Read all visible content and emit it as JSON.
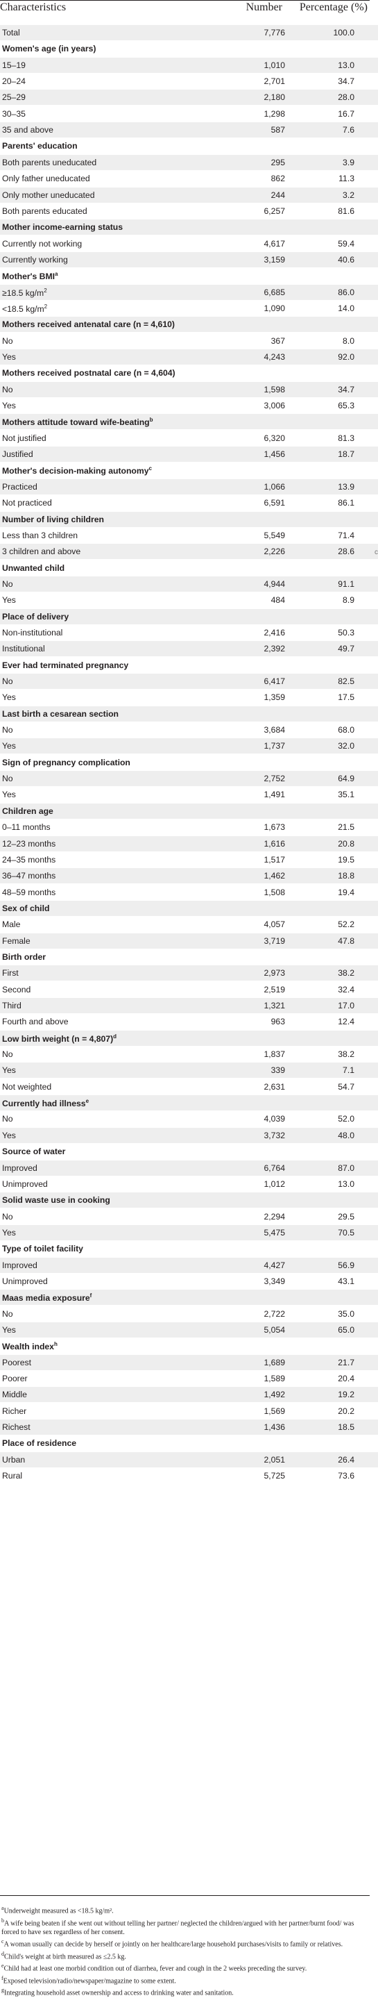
{
  "header": {
    "characteristics": "Characteristics",
    "number": "Number",
    "percentage": "Percentage (%)"
  },
  "rows": [
    {
      "type": "data",
      "label": "Total",
      "number": "7,776",
      "percent": "100.0"
    },
    {
      "type": "section",
      "label": "Women's age (in years)"
    },
    {
      "type": "data",
      "label": "15–19",
      "number": "1,010",
      "percent": "13.0"
    },
    {
      "type": "data",
      "label": "20–24",
      "number": "2,701",
      "percent": "34.7"
    },
    {
      "type": "data",
      "label": "25–29",
      "number": "2,180",
      "percent": "28.0"
    },
    {
      "type": "data",
      "label": "30–35",
      "number": "1,298",
      "percent": "16.7"
    },
    {
      "type": "data",
      "label": "35 and above",
      "number": "587",
      "percent": "7.6"
    },
    {
      "type": "section",
      "label": "Parents' education"
    },
    {
      "type": "data",
      "label": "Both parents uneducated",
      "number": "295",
      "percent": "3.9"
    },
    {
      "type": "data",
      "label": "Only father uneducated",
      "number": "862",
      "percent": "11.3"
    },
    {
      "type": "data",
      "label": "Only mother uneducated",
      "number": "244",
      "percent": "3.2"
    },
    {
      "type": "data",
      "label": "Both parents educated",
      "number": "6,257",
      "percent": "81.6"
    },
    {
      "type": "section",
      "label": "Mother income-earning status"
    },
    {
      "type": "data",
      "label": "Currently not working",
      "number": "4,617",
      "percent": "59.4"
    },
    {
      "type": "data",
      "label": "Currently working",
      "number": "3,159",
      "percent": "40.6"
    },
    {
      "type": "section",
      "label": "Mother's BMI",
      "sup": "a"
    },
    {
      "type": "data",
      "label": "≥18.5 kg/m",
      "sup": "2",
      "number": "6,685",
      "percent": "86.0"
    },
    {
      "type": "data",
      "label": "<18.5 kg/m",
      "sup": "2",
      "number": "1,090",
      "percent": "14.0"
    },
    {
      "type": "section",
      "label": "Mothers received antenatal care (n = 4,610)"
    },
    {
      "type": "data",
      "label": "No",
      "number": "367",
      "percent": "8.0"
    },
    {
      "type": "data",
      "label": "Yes",
      "number": "4,243",
      "percent": "92.0"
    },
    {
      "type": "section",
      "label": "Mothers received postnatal care (n = 4,604)"
    },
    {
      "type": "data",
      "label": "No",
      "number": "1,598",
      "percent": "34.7"
    },
    {
      "type": "data",
      "label": "Yes",
      "number": "3,006",
      "percent": "65.3"
    },
    {
      "type": "section",
      "label": "Mothers attitude toward wife-beating",
      "sup": "b"
    },
    {
      "type": "data",
      "label": "Not justified",
      "number": "6,320",
      "percent": "81.3"
    },
    {
      "type": "data",
      "label": "Justified",
      "number": "1,456",
      "percent": "18.7"
    },
    {
      "type": "section",
      "label": "Mother's decision-making autonomy",
      "sup": "c"
    },
    {
      "type": "data",
      "label": "Practiced",
      "number": "1,066",
      "percent": "13.9"
    },
    {
      "type": "data",
      "label": "Not practiced",
      "number": "6,591",
      "percent": "86.1"
    },
    {
      "type": "section",
      "label": "Number of living children"
    },
    {
      "type": "data",
      "label": "Less than 3 children",
      "number": "5,549",
      "percent": "71.4"
    },
    {
      "type": "data",
      "label": "3 children and above",
      "number": "2,226",
      "percent": "28.6"
    },
    {
      "type": "section",
      "label": "Unwanted child"
    },
    {
      "type": "data",
      "label": "No",
      "number": "4,944",
      "percent": "91.1"
    },
    {
      "type": "data",
      "label": "Yes",
      "number": "484",
      "percent": "8.9"
    },
    {
      "type": "section",
      "label": "Place of delivery"
    },
    {
      "type": "data",
      "label": "Non-institutional",
      "number": "2,416",
      "percent": "50.3"
    },
    {
      "type": "data",
      "label": "Institutional",
      "number": "2,392",
      "percent": "49.7"
    },
    {
      "type": "section",
      "label": "Ever had terminated pregnancy"
    },
    {
      "type": "data",
      "label": "No",
      "number": "6,417",
      "percent": "82.5"
    },
    {
      "type": "data",
      "label": "Yes",
      "number": "1,359",
      "percent": "17.5"
    },
    {
      "type": "section",
      "label": "Last birth a cesarean section"
    },
    {
      "type": "data",
      "label": "No",
      "number": "3,684",
      "percent": "68.0"
    },
    {
      "type": "data",
      "label": "Yes",
      "number": "1,737",
      "percent": "32.0"
    },
    {
      "type": "section",
      "label": "Sign of pregnancy complication"
    },
    {
      "type": "data",
      "label": "No",
      "number": "2,752",
      "percent": "64.9"
    },
    {
      "type": "data",
      "label": "Yes",
      "number": "1,491",
      "percent": "35.1"
    },
    {
      "type": "section",
      "label": "Children age"
    },
    {
      "type": "data",
      "label": "0–11 months",
      "number": "1,673",
      "percent": "21.5"
    },
    {
      "type": "data",
      "label": "12–23 months",
      "number": "1,616",
      "percent": "20.8"
    },
    {
      "type": "data",
      "label": "24–35 months",
      "number": "1,517",
      "percent": "19.5"
    },
    {
      "type": "data",
      "label": "36–47 months",
      "number": "1,462",
      "percent": "18.8"
    },
    {
      "type": "data",
      "label": "48–59 months",
      "number": "1,508",
      "percent": "19.4"
    },
    {
      "type": "section",
      "label": "Sex of child"
    },
    {
      "type": "data",
      "label": "Male",
      "number": "4,057",
      "percent": "52.2"
    },
    {
      "type": "data",
      "label": "Female",
      "number": "3,719",
      "percent": "47.8"
    },
    {
      "type": "section",
      "label": "Birth order"
    },
    {
      "type": "data",
      "label": "First",
      "number": "2,973",
      "percent": "38.2"
    },
    {
      "type": "data",
      "label": "Second",
      "number": "2,519",
      "percent": "32.4"
    },
    {
      "type": "data",
      "label": "Third",
      "number": "1,321",
      "percent": "17.0"
    },
    {
      "type": "data",
      "label": "Fourth and above",
      "number": "963",
      "percent": "12.4"
    },
    {
      "type": "section",
      "label": "Low birth weight (n = 4,807)",
      "sup": "d"
    },
    {
      "type": "data",
      "label": "No",
      "number": "1,837",
      "percent": "38.2"
    },
    {
      "type": "data",
      "label": "Yes",
      "number": "339",
      "percent": "7.1"
    },
    {
      "type": "data",
      "label": "Not weighted",
      "number": "2,631",
      "percent": "54.7"
    },
    {
      "type": "section",
      "label": "Currently had illness",
      "sup": "e"
    },
    {
      "type": "data",
      "label": "No",
      "number": "4,039",
      "percent": "52.0"
    },
    {
      "type": "data",
      "label": "Yes",
      "number": "3,732",
      "percent": "48.0"
    },
    {
      "type": "section",
      "label": "Source of water"
    },
    {
      "type": "data",
      "label": "Improved",
      "number": "6,764",
      "percent": "87.0"
    },
    {
      "type": "data",
      "label": "Unimproved",
      "number": "1,012",
      "percent": "13.0"
    },
    {
      "type": "section",
      "label": "Solid waste use in cooking"
    },
    {
      "type": "data",
      "label": "No",
      "number": "2,294",
      "percent": "29.5"
    },
    {
      "type": "data",
      "label": "Yes",
      "number": "5,475",
      "percent": "70.5"
    },
    {
      "type": "section",
      "label": "Type of toilet facility"
    },
    {
      "type": "data",
      "label": "Improved",
      "number": "4,427",
      "percent": "56.9"
    },
    {
      "type": "data",
      "label": "Unimproved",
      "number": "3,349",
      "percent": "43.1"
    },
    {
      "type": "section",
      "label": "Maas media exposure",
      "sup": "f"
    },
    {
      "type": "data",
      "label": "No",
      "number": "2,722",
      "percent": "35.0"
    },
    {
      "type": "data",
      "label": "Yes",
      "number": "5,054",
      "percent": "65.0"
    },
    {
      "type": "section",
      "label": "Wealth index",
      "sup": "h"
    },
    {
      "type": "data",
      "label": "Poorest",
      "number": "1,689",
      "percent": "21.7"
    },
    {
      "type": "data",
      "label": "Poorer",
      "number": "1,589",
      "percent": "20.4"
    },
    {
      "type": "data",
      "label": "Middle",
      "number": "1,492",
      "percent": "19.2"
    },
    {
      "type": "data",
      "label": "Richer",
      "number": "1,569",
      "percent": "20.2"
    },
    {
      "type": "data",
      "label": "Richest",
      "number": "1,436",
      "percent": "18.5"
    },
    {
      "type": "section",
      "label": "Place of residence"
    },
    {
      "type": "data",
      "label": "Urban",
      "number": "2,051",
      "percent": "26.4"
    },
    {
      "type": "data",
      "label": "Rural",
      "number": "5,725",
      "percent": "73.6"
    }
  ],
  "footnotes": [
    {
      "mark": "a",
      "text": "Underweight measured as <18.5 kg/m²."
    },
    {
      "mark": "b",
      "text": "A wife being beaten if she went out without telling her partner/ neglected the children/argued with her partner/burnt food/ was forced to have sex regardless of her consent."
    },
    {
      "mark": "c",
      "text": "A woman usually can decide by herself or jointly on her healthcare/large household purchases/visits to family or relatives."
    },
    {
      "mark": "d",
      "text": "Child's weight at birth measured as ≤2.5 kg."
    },
    {
      "mark": "e",
      "text": "Child had at least one morbid condition out of diarrhea, fever and cough in the 2 weeks preceding the survey."
    },
    {
      "mark": "f",
      "text": "Exposed television/radio/newspaper/magazine to some extent."
    },
    {
      "mark": "g",
      "text": "Integrating household asset ownership and access to drinking water and sanitation."
    }
  ],
  "stray_mark": "c"
}
